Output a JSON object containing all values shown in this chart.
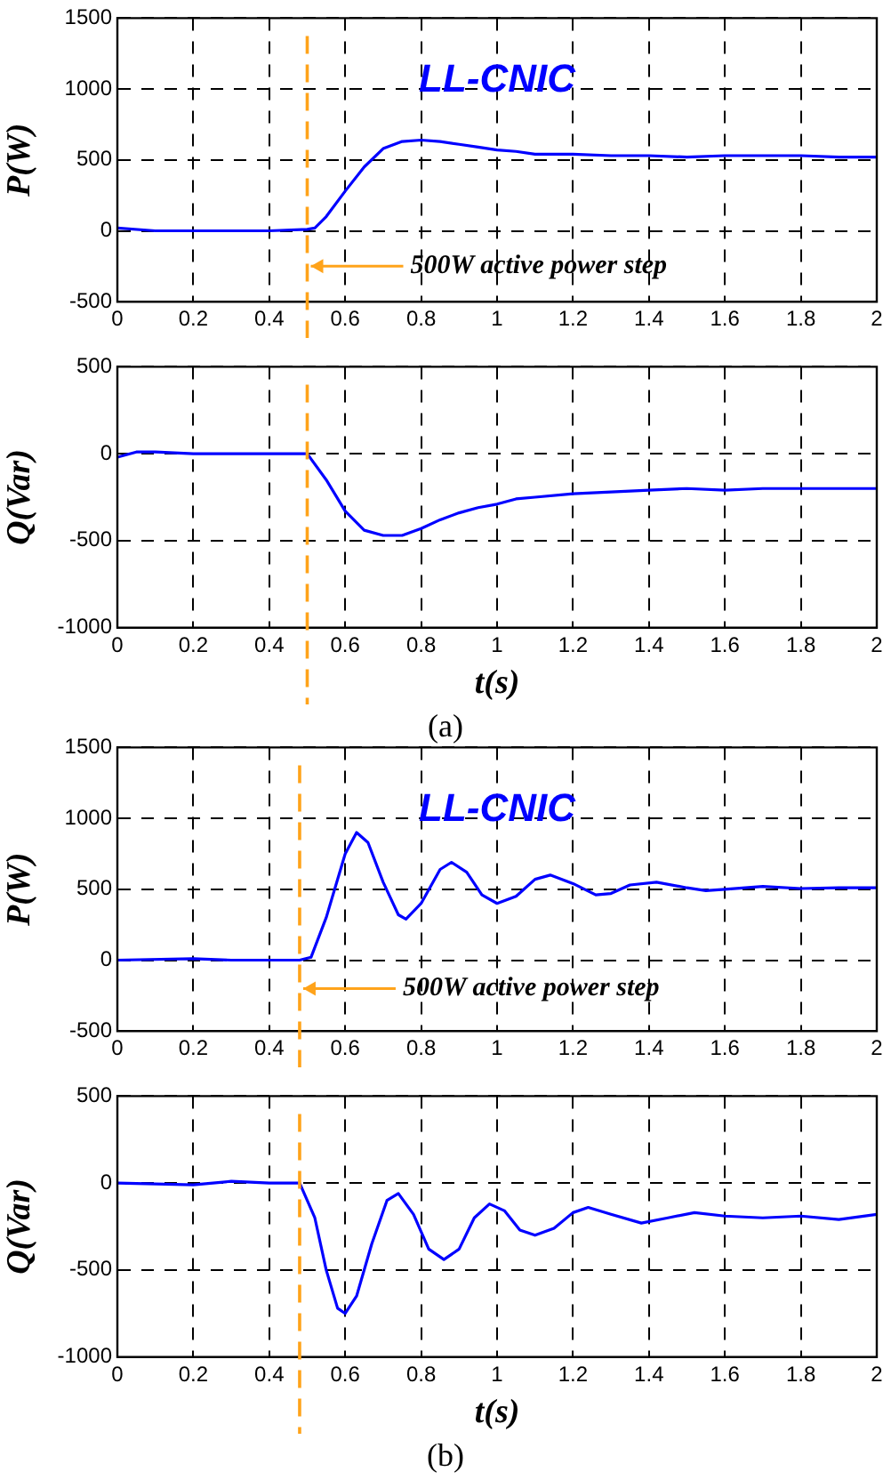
{
  "chart_data": [
    {
      "type": "line",
      "ylabel": "P(W)",
      "xlim": [
        0,
        2
      ],
      "xticks": [
        0,
        0.2,
        0.4,
        0.6,
        0.8,
        1,
        1.2,
        1.4,
        1.6,
        1.8,
        2
      ],
      "ylim": [
        -500,
        1500
      ],
      "yticks": [
        -500,
        0,
        500,
        1000,
        1500
      ],
      "grid": true,
      "line_style": "solid",
      "marker": "none",
      "x": [
        0,
        0.1,
        0.2,
        0.3,
        0.4,
        0.5,
        0.52,
        0.55,
        0.6,
        0.65,
        0.7,
        0.75,
        0.8,
        0.85,
        0.9,
        0.95,
        1.0,
        1.05,
        1.1,
        1.2,
        1.3,
        1.4,
        1.5,
        1.6,
        1.7,
        1.8,
        1.9,
        2.0
      ],
      "series": [
        {
          "color": "#0000ff",
          "values": [
            20,
            0,
            0,
            0,
            0,
            10,
            20,
            100,
            280,
            450,
            580,
            630,
            640,
            630,
            610,
            590,
            570,
            560,
            540,
            540,
            530,
            530,
            520,
            530,
            530,
            530,
            520,
            520
          ]
        }
      ],
      "ref_lines": [
        {
          "axis": "x",
          "value": 0.5,
          "color": "#ffa31a",
          "line_style": "dashed"
        }
      ],
      "annotations": [
        "LL-CNIC",
        {
          "text": "500W active power step",
          "x": 0.5,
          "y": -250
        }
      ]
    },
    {
      "type": "line",
      "ylabel": "Q(Var)",
      "xlabel": "t(s)",
      "xlim": [
        0,
        2
      ],
      "xticks": [
        0,
        0.2,
        0.4,
        0.6,
        0.8,
        1,
        1.2,
        1.4,
        1.6,
        1.8,
        2
      ],
      "ylim": [
        -1000,
        500
      ],
      "yticks": [
        -1000,
        -500,
        0,
        500
      ],
      "grid": true,
      "line_style": "solid",
      "marker": "none",
      "x": [
        0,
        0.05,
        0.1,
        0.2,
        0.3,
        0.4,
        0.5,
        0.55,
        0.6,
        0.65,
        0.7,
        0.75,
        0.8,
        0.85,
        0.9,
        0.95,
        1.0,
        1.05,
        1.1,
        1.2,
        1.3,
        1.4,
        1.5,
        1.6,
        1.7,
        1.8,
        1.9,
        2.0
      ],
      "series": [
        {
          "color": "#0000ff",
          "values": [
            -20,
            10,
            10,
            0,
            0,
            0,
            0,
            -150,
            -330,
            -440,
            -470,
            -470,
            -430,
            -380,
            -340,
            -310,
            -290,
            -260,
            -250,
            -230,
            -220,
            -210,
            -200,
            -210,
            -200,
            -200,
            -200,
            -200
          ]
        }
      ],
      "ref_lines": [
        {
          "axis": "x",
          "value": 0.5,
          "color": "#ffa31a",
          "line_style": "dashed"
        }
      ],
      "annotations": [
        "(a)"
      ]
    },
    {
      "type": "line",
      "ylabel": "P(W)",
      "xlim": [
        0,
        2
      ],
      "xticks": [
        0,
        0.2,
        0.4,
        0.6,
        0.8,
        1,
        1.2,
        1.4,
        1.6,
        1.8,
        2
      ],
      "ylim": [
        -500,
        1500
      ],
      "yticks": [
        -500,
        0,
        500,
        1000,
        1500
      ],
      "grid": true,
      "line_style": "solid",
      "marker": "none",
      "x": [
        0,
        0.2,
        0.3,
        0.4,
        0.48,
        0.51,
        0.55,
        0.6,
        0.63,
        0.66,
        0.7,
        0.74,
        0.76,
        0.8,
        0.85,
        0.88,
        0.92,
        0.96,
        1.0,
        1.05,
        1.1,
        1.14,
        1.2,
        1.26,
        1.3,
        1.35,
        1.42,
        1.5,
        1.55,
        1.6,
        1.7,
        1.8,
        1.9,
        2.0
      ],
      "series": [
        {
          "color": "#0000ff",
          "values": [
            0,
            10,
            0,
            0,
            0,
            20,
            300,
            750,
            900,
            830,
            550,
            320,
            290,
            400,
            640,
            690,
            620,
            460,
            400,
            450,
            570,
            600,
            540,
            460,
            470,
            530,
            550,
            510,
            490,
            500,
            520,
            505,
            510,
            510
          ]
        }
      ],
      "ref_lines": [
        {
          "axis": "x",
          "value": 0.48,
          "color": "#ffa31a",
          "line_style": "dashed"
        }
      ],
      "annotations": [
        "LL-CNIC",
        {
          "text": "500W active power step",
          "x": 0.48,
          "y": -200
        }
      ]
    },
    {
      "type": "line",
      "ylabel": "Q(Var)",
      "xlabel": "t(s)",
      "xlim": [
        0,
        2
      ],
      "xticks": [
        0,
        0.2,
        0.4,
        0.6,
        0.8,
        1,
        1.2,
        1.4,
        1.6,
        1.8,
        2
      ],
      "ylim": [
        -1000,
        500
      ],
      "yticks": [
        -1000,
        -500,
        0,
        500
      ],
      "grid": true,
      "line_style": "solid",
      "marker": "none",
      "x": [
        0,
        0.2,
        0.3,
        0.4,
        0.48,
        0.52,
        0.55,
        0.58,
        0.6,
        0.63,
        0.67,
        0.71,
        0.74,
        0.78,
        0.82,
        0.86,
        0.9,
        0.94,
        0.98,
        1.02,
        1.06,
        1.1,
        1.15,
        1.2,
        1.24,
        1.3,
        1.38,
        1.45,
        1.52,
        1.6,
        1.7,
        1.8,
        1.9,
        2.0
      ],
      "series": [
        {
          "color": "#0000ff",
          "values": [
            0,
            -10,
            10,
            0,
            0,
            -200,
            -500,
            -720,
            -750,
            -650,
            -350,
            -100,
            -60,
            -180,
            -380,
            -440,
            -380,
            -200,
            -120,
            -160,
            -270,
            -300,
            -260,
            -170,
            -140,
            -180,
            -230,
            -200,
            -170,
            -190,
            -200,
            -190,
            -210,
            -180
          ]
        }
      ],
      "ref_lines": [
        {
          "axis": "x",
          "value": 0.48,
          "color": "#ffa31a",
          "line_style": "dashed"
        }
      ],
      "annotations": [
        "(b)"
      ]
    }
  ]
}
